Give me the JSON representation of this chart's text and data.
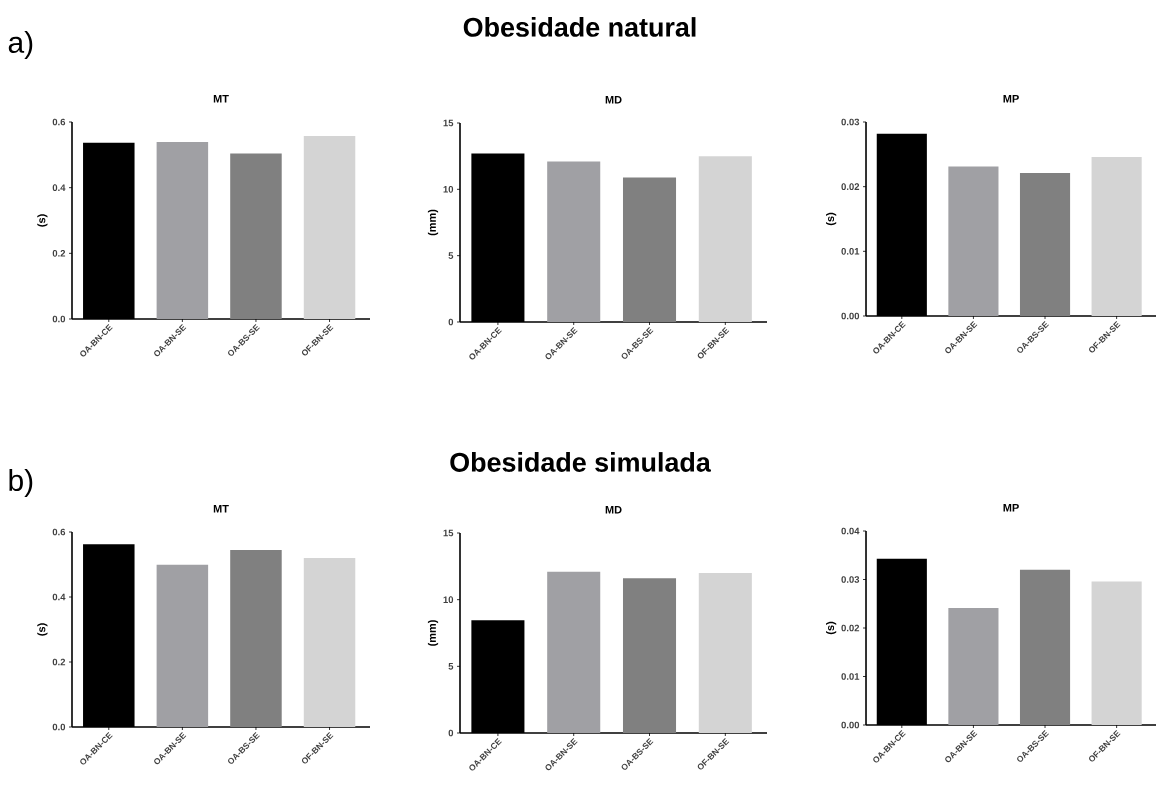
{
  "chart_data": [
    {
      "type": "bar",
      "title": "MT",
      "ylabel": "(s)",
      "annotations": [
        "Obesidade natural",
        "a)"
      ],
      "categories": [
        "OA-BN-CE",
        "OA-BN-SE",
        "OA-BS-SE",
        "OF-BN-SE"
      ],
      "values": [
        0.537,
        0.539,
        0.504,
        0.557
      ],
      "colors": [
        "#000000",
        "#a0a0a4",
        "#808080",
        "#d4d4d4"
      ],
      "ylim": [
        0,
        0.6
      ],
      "yticks": [
        {
          "value": 0,
          "label": "0.0"
        },
        {
          "value": 0.2,
          "label": "0.2"
        },
        {
          "value": 0.4,
          "label": "0.4"
        },
        {
          "value": 0.6,
          "label": "0.6"
        }
      ]
    },
    {
      "type": "bar",
      "title": "MD",
      "ylabel": "(mm)",
      "categories": [
        "OA-BN-CE",
        "OA-BN-SE",
        "OA-BS-SE",
        "OF-BN-SE"
      ],
      "values": [
        12.7,
        12.1,
        10.9,
        12.5
      ],
      "colors": [
        "#000000",
        "#a0a0a4",
        "#808080",
        "#d4d4d4"
      ],
      "ylim": [
        0,
        15
      ],
      "yticks": [
        0,
        5,
        10,
        15
      ]
    },
    {
      "type": "bar",
      "title": "MP",
      "ylabel": "(s)",
      "categories": [
        "OA-BN-CE",
        "OA-BN-SE",
        "OA-BS-SE",
        "OF-BN-SE"
      ],
      "values": [
        0.0282,
        0.0231,
        0.0221,
        0.0246
      ],
      "colors": [
        "#000000",
        "#a0a0a4",
        "#808080",
        "#d4d4d4"
      ],
      "ylim": [
        0,
        0.03
      ],
      "yticks": [
        {
          "value": 0,
          "label": "0.00"
        },
        {
          "value": 0.01,
          "label": "0.01"
        },
        {
          "value": 0.02,
          "label": "0.02"
        },
        {
          "value": 0.03,
          "label": "0.03"
        }
      ]
    },
    {
      "type": "bar",
      "title": "MT",
      "ylabel": "(s)",
      "annotations": [
        "Obesidade simulada",
        "b)"
      ],
      "categories": [
        "OA-BN-CE",
        "OA-BN-SE",
        "OA-BS-SE",
        "OF-BN-SE"
      ],
      "values": [
        0.562,
        0.499,
        0.545,
        0.52
      ],
      "colors": [
        "#000000",
        "#a0a0a4",
        "#808080",
        "#d4d4d4"
      ],
      "ylim": [
        0,
        0.6
      ],
      "yticks": [
        {
          "value": 0,
          "label": "0.0"
        },
        {
          "value": 0.2,
          "label": "0.2"
        },
        {
          "value": 0.4,
          "label": "0.4"
        },
        {
          "value": 0.6,
          "label": "0.6"
        }
      ]
    },
    {
      "type": "bar",
      "title": "MD",
      "ylabel": "(mm)",
      "categories": [
        "OA-BN-CE",
        "OA-BN-SE",
        "OA-BS-SE",
        "OF-BN-SE"
      ],
      "values": [
        8.45,
        12.1,
        11.6,
        12.0
      ],
      "colors": [
        "#000000",
        "#a0a0a4",
        "#808080",
        "#d4d4d4"
      ],
      "ylim": [
        0,
        15
      ],
      "yticks": [
        0,
        5,
        10,
        15
      ]
    },
    {
      "type": "bar",
      "title": "MP",
      "ylabel": "(s)",
      "categories": [
        "OA-BN-CE",
        "OA-BN-SE",
        "OA-BS-SE",
        "OF-BN-SE"
      ],
      "values": [
        0.0343,
        0.0241,
        0.032,
        0.0296
      ],
      "colors": [
        "#000000",
        "#a0a0a4",
        "#808080",
        "#d4d4d4"
      ],
      "ylim": [
        0,
        0.04
      ],
      "yticks": [
        {
          "value": 0,
          "label": "0.00"
        },
        {
          "value": 0.01,
          "label": "0.01"
        },
        {
          "value": 0.02,
          "label": "0.02"
        },
        {
          "value": 0.03,
          "label": "0.03"
        },
        {
          "value": 0.04,
          "label": "0.04"
        }
      ]
    }
  ]
}
